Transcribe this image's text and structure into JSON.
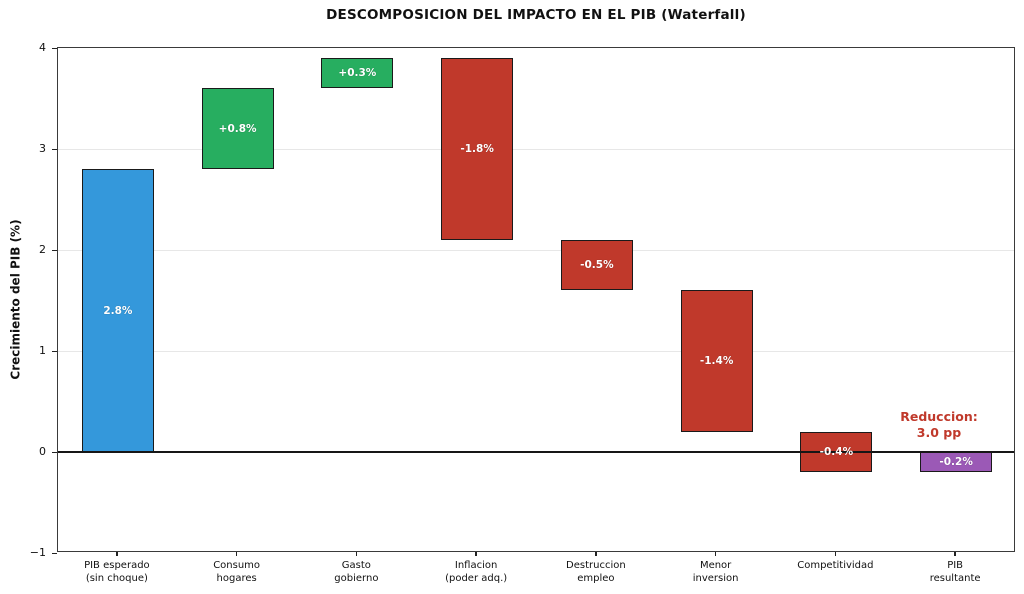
{
  "chart_data": {
    "type": "bar",
    "subtype": "waterfall",
    "title": "DESCOMPOSICION DEL IMPACTO EN EL PIB (Waterfall)",
    "xlabel": "",
    "ylabel": "Crecimiento del PIB (%)",
    "ylim": [
      -1,
      4
    ],
    "yticks": [
      -1,
      0,
      1,
      2,
      3,
      4
    ],
    "grid": "horizontal light gray lines at integer values",
    "legend": "none",
    "bars": [
      {
        "category": "PIB esperado (sin choque)",
        "category_lines": [
          "PIB esperado",
          "(sin choque)"
        ],
        "start": 0,
        "end": 2.8,
        "value": 2.8,
        "label": "2.8%",
        "color": "#3498db",
        "role": "initial"
      },
      {
        "category": "Consumo hogares",
        "category_lines": [
          "Consumo",
          "hogares"
        ],
        "start": 2.8,
        "end": 3.6,
        "value": 0.8,
        "label": "+0.8%",
        "color": "#27ae60",
        "role": "increase"
      },
      {
        "category": "Gasto gobierno",
        "category_lines": [
          "Gasto",
          "gobierno"
        ],
        "start": 3.6,
        "end": 3.9,
        "value": 0.3,
        "label": "+0.3%",
        "color": "#27ae60",
        "role": "increase"
      },
      {
        "category": "Inflacion (poder adq.)",
        "category_lines": [
          "Inflacion",
          "(poder adq.)"
        ],
        "start": 3.9,
        "end": 2.1,
        "value": -1.8,
        "label": "-1.8%",
        "color": "#c0392b",
        "role": "decrease"
      },
      {
        "category": "Destruccion empleo",
        "category_lines": [
          "Destruccion",
          "empleo"
        ],
        "start": 2.1,
        "end": 1.6,
        "value": -0.5,
        "label": "-0.5%",
        "color": "#c0392b",
        "role": "decrease"
      },
      {
        "category": "Menor inversion",
        "category_lines": [
          "Menor",
          "inversion"
        ],
        "start": 1.6,
        "end": 0.2,
        "value": -1.4,
        "label": "-1.4%",
        "color": "#c0392b",
        "role": "decrease"
      },
      {
        "category": "Competitividad",
        "category_lines": [
          "Competitividad"
        ],
        "start": 0.2,
        "end": -0.2,
        "value": -0.4,
        "label": "-0.4%",
        "color": "#c0392b",
        "role": "decrease"
      },
      {
        "category": "PIB resultante",
        "category_lines": [
          "PIB",
          "resultante"
        ],
        "start": 0,
        "end": -0.2,
        "value": -0.2,
        "label": "-0.2%",
        "color": "#9b59b6",
        "role": "total"
      }
    ],
    "annotation": {
      "line1": "Reduccion:",
      "line2": "3.0 pp",
      "color": "#c0392b",
      "near_category": "PIB resultante"
    },
    "colors": {
      "initial": "#3498db",
      "increase": "#27ae60",
      "decrease": "#c0392b",
      "total": "#9b59b6",
      "bar_edge": "#1a1a1a",
      "zero_line": "#161616",
      "grid": "#e7e7e7",
      "annotation": "#c0392b"
    }
  }
}
